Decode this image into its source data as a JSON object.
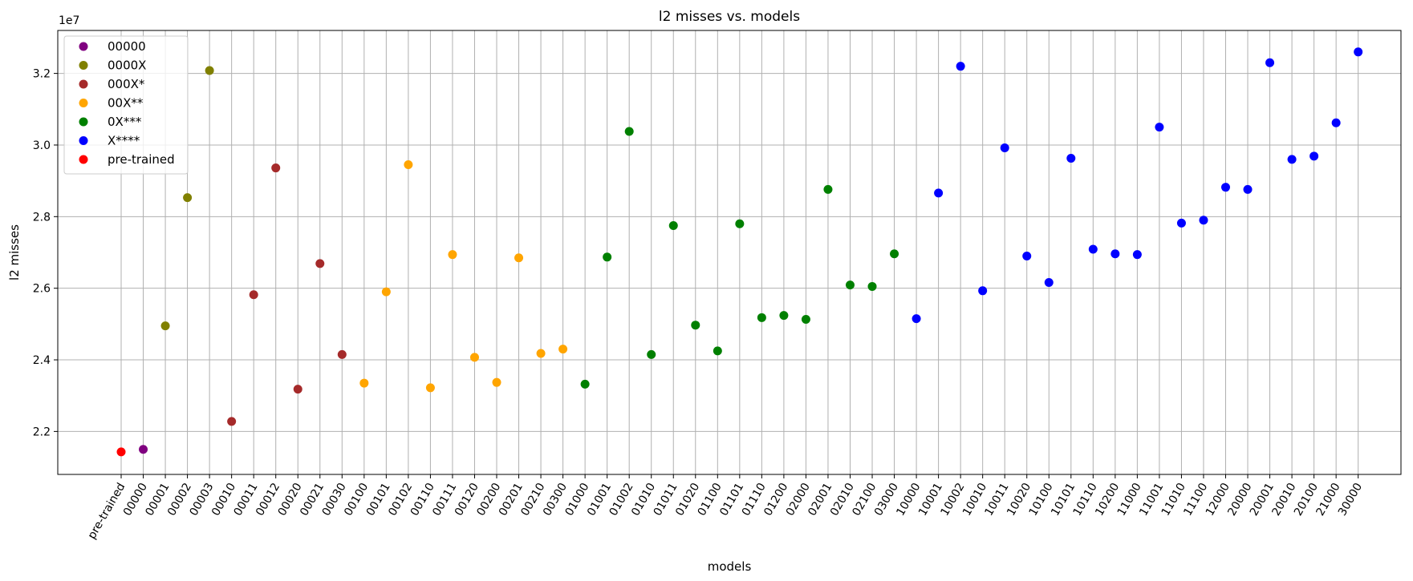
{
  "chart_data": {
    "type": "scatter",
    "title": "l2 misses vs. models",
    "xlabel": "models",
    "ylabel": "l2 misses",
    "y_offset_label": "1e7",
    "y_scale": 10000000,
    "ylim": [
      2.08,
      3.32
    ],
    "yticks": [
      2.2,
      2.4,
      2.6,
      2.8,
      3.0,
      3.2
    ],
    "ytick_labels": [
      "2.2",
      "2.4",
      "2.6",
      "2.8",
      "3.0",
      "3.2"
    ],
    "grid": true,
    "legend_position": "top-left",
    "categories": [
      "pre-trained",
      "00000",
      "00001",
      "00002",
      "00003",
      "00010",
      "00011",
      "00012",
      "00020",
      "00021",
      "00030",
      "00100",
      "00101",
      "00102",
      "00110",
      "00111",
      "00120",
      "00200",
      "00201",
      "00210",
      "00300",
      "01000",
      "01001",
      "01002",
      "01010",
      "01011",
      "01020",
      "01100",
      "01101",
      "01110",
      "01200",
      "02000",
      "02001",
      "02010",
      "02100",
      "03000",
      "10000",
      "10001",
      "10002",
      "10010",
      "10011",
      "10020",
      "10100",
      "10101",
      "10110",
      "10200",
      "11000",
      "11001",
      "11010",
      "11100",
      "12000",
      "20000",
      "20001",
      "20010",
      "20100",
      "21000",
      "30000"
    ],
    "series": [
      {
        "name": "00000",
        "color": "#800080",
        "points": [
          {
            "x": "00000",
            "y": 2.15
          }
        ]
      },
      {
        "name": "0000X",
        "color": "#808000",
        "points": [
          {
            "x": "00001",
            "y": 2.495
          },
          {
            "x": "00002",
            "y": 2.853
          },
          {
            "x": "00003",
            "y": 3.208
          }
        ]
      },
      {
        "name": "000X*",
        "color": "#a52a2a",
        "points": [
          {
            "x": "00010",
            "y": 2.228
          },
          {
            "x": "00011",
            "y": 2.582
          },
          {
            "x": "00012",
            "y": 2.936
          },
          {
            "x": "00020",
            "y": 2.318
          },
          {
            "x": "00021",
            "y": 2.669
          },
          {
            "x": "00030",
            "y": 2.415
          }
        ]
      },
      {
        "name": "00X**",
        "color": "#ffa500",
        "points": [
          {
            "x": "00100",
            "y": 2.335
          },
          {
            "x": "00101",
            "y": 2.59
          },
          {
            "x": "00102",
            "y": 2.945
          },
          {
            "x": "00110",
            "y": 2.322
          },
          {
            "x": "00111",
            "y": 2.694
          },
          {
            "x": "00120",
            "y": 2.407
          },
          {
            "x": "00200",
            "y": 2.337
          },
          {
            "x": "00201",
            "y": 2.685
          },
          {
            "x": "00210",
            "y": 2.418
          },
          {
            "x": "00300",
            "y": 2.43
          }
        ]
      },
      {
        "name": "0X***",
        "color": "#008000",
        "points": [
          {
            "x": "01000",
            "y": 2.332
          },
          {
            "x": "01001",
            "y": 2.687
          },
          {
            "x": "01002",
            "y": 3.038
          },
          {
            "x": "01010",
            "y": 2.415
          },
          {
            "x": "01011",
            "y": 2.775
          },
          {
            "x": "01020",
            "y": 2.497
          },
          {
            "x": "01100",
            "y": 2.425
          },
          {
            "x": "01101",
            "y": 2.78
          },
          {
            "x": "01110",
            "y": 2.518
          },
          {
            "x": "01200",
            "y": 2.524
          },
          {
            "x": "02000",
            "y": 2.513
          },
          {
            "x": "02001",
            "y": 2.876
          },
          {
            "x": "02010",
            "y": 2.609
          },
          {
            "x": "02100",
            "y": 2.605
          },
          {
            "x": "03000",
            "y": 2.696
          }
        ]
      },
      {
        "name": "X****",
        "color": "#0000ff",
        "points": [
          {
            "x": "10000",
            "y": 2.515
          },
          {
            "x": "10001",
            "y": 2.866
          },
          {
            "x": "10002",
            "y": 3.22
          },
          {
            "x": "10010",
            "y": 2.593
          },
          {
            "x": "10011",
            "y": 2.992
          },
          {
            "x": "10020",
            "y": 2.69
          },
          {
            "x": "10100",
            "y": 2.616
          },
          {
            "x": "10101",
            "y": 2.963
          },
          {
            "x": "10110",
            "y": 2.709
          },
          {
            "x": "10200",
            "y": 2.696
          },
          {
            "x": "11000",
            "y": 2.694
          },
          {
            "x": "11001",
            "y": 3.05
          },
          {
            "x": "11010",
            "y": 2.782
          },
          {
            "x": "11100",
            "y": 2.79
          },
          {
            "x": "12000",
            "y": 2.882
          },
          {
            "x": "20000",
            "y": 2.876
          },
          {
            "x": "20001",
            "y": 3.23
          },
          {
            "x": "20010",
            "y": 2.96
          },
          {
            "x": "20100",
            "y": 2.969
          },
          {
            "x": "21000",
            "y": 3.062
          },
          {
            "x": "30000",
            "y": 3.26
          }
        ]
      },
      {
        "name": "pre-trained",
        "color": "#ff0000",
        "points": [
          {
            "x": "pre-trained",
            "y": 2.143
          }
        ]
      }
    ]
  }
}
